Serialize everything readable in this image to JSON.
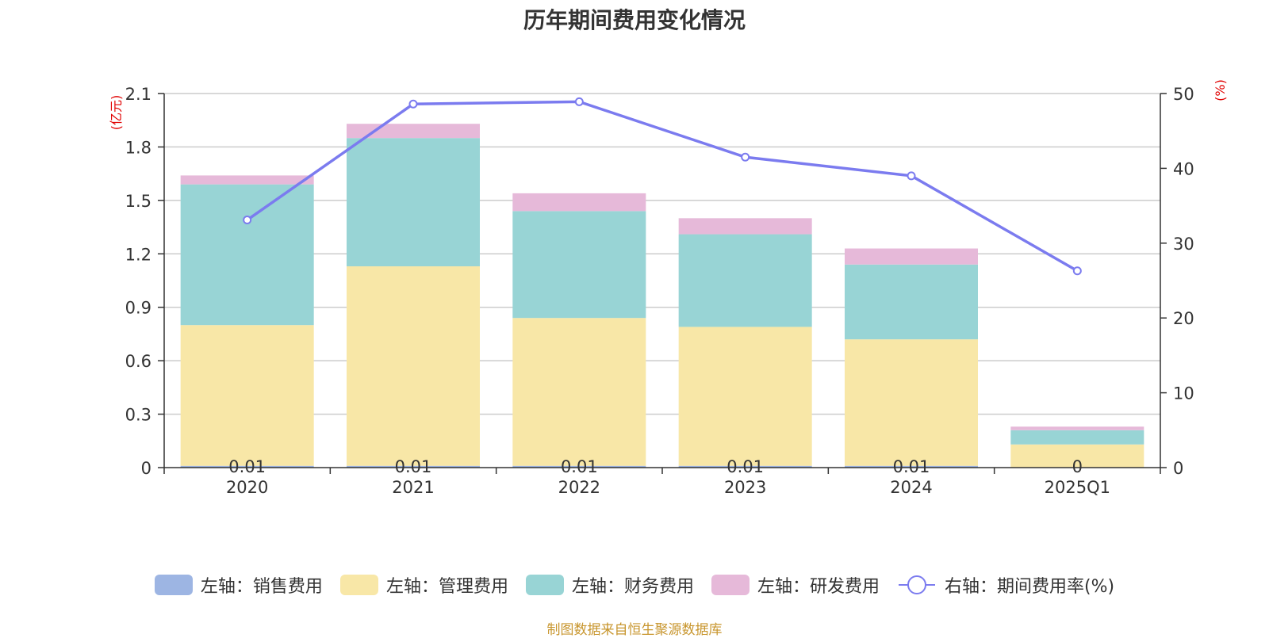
{
  "chart_data": {
    "type": "bar",
    "title": "历年期间费用变化情况",
    "categories": [
      "2020",
      "2021",
      "2022",
      "2023",
      "2024",
      "2025Q1"
    ],
    "left_axis": {
      "unit": "(亿元)",
      "ticks": [
        "0",
        "0.3",
        "0.6",
        "0.9",
        "1.2",
        "1.5",
        "1.8",
        "2.1"
      ],
      "ylim": [
        0,
        2.1
      ]
    },
    "right_axis": {
      "unit": "(%)",
      "ticks": [
        "0",
        "10",
        "20",
        "30",
        "40",
        "50"
      ],
      "ylim": [
        0,
        50
      ]
    },
    "series": [
      {
        "name": "左轴：销售费用",
        "axis": "left",
        "stack": true,
        "color": "#9db5e3",
        "values": [
          0.01,
          0.01,
          0.01,
          0.01,
          0.01,
          0
        ],
        "labels": [
          "0.01",
          "0.01",
          "0.01",
          "0.01",
          "0.01",
          "0"
        ]
      },
      {
        "name": "左轴：管理费用",
        "axis": "left",
        "stack": true,
        "color": "#f8e7a7",
        "values": [
          0.79,
          1.12,
          0.83,
          0.78,
          0.71,
          0.13
        ]
      },
      {
        "name": "左轴：财务费用",
        "axis": "left",
        "stack": true,
        "color": "#98d4d5",
        "values": [
          0.79,
          0.72,
          0.6,
          0.52,
          0.42,
          0.08
        ]
      },
      {
        "name": "左轴：研发费用",
        "axis": "left",
        "stack": true,
        "color": "#e6b9d9",
        "values": [
          0.05,
          0.08,
          0.1,
          0.09,
          0.09,
          0.02
        ]
      },
      {
        "name": "右轴：期间费用率(%)",
        "axis": "right",
        "type": "line",
        "color": "#7b7bef",
        "values": [
          33.1,
          48.6,
          48.9,
          41.5,
          39.0,
          26.3
        ]
      }
    ],
    "grid": true,
    "legend_position": "bottom"
  },
  "source_note": "制图数据来自恒生聚源数据库"
}
